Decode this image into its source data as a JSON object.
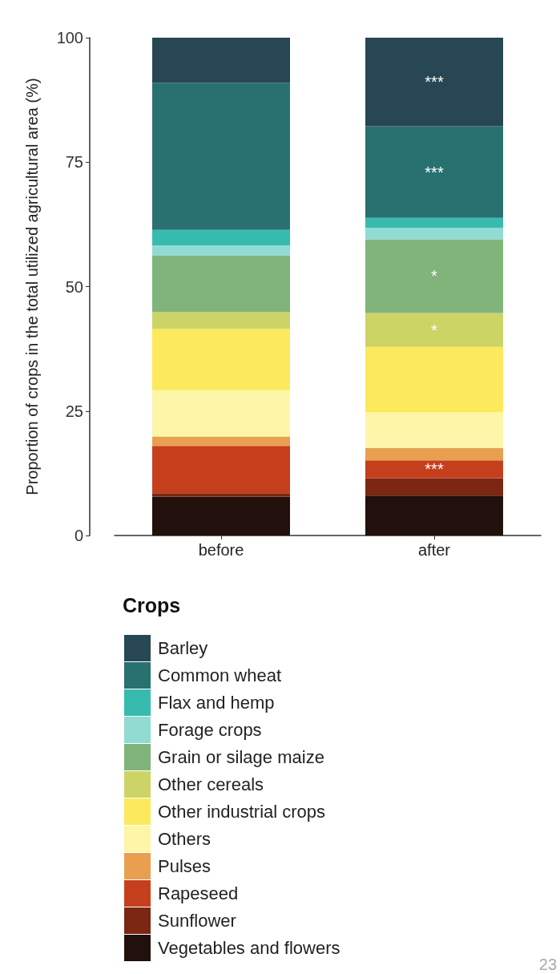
{
  "chart_data": {
    "type": "bar",
    "stacked": true,
    "ylabel": "Proportion of crops in the total utilized agricultural area (%)",
    "legend_title": "Crops",
    "legend": "bottom",
    "grid": false,
    "categories": [
      "before",
      "after"
    ],
    "ylim": [
      0,
      100
    ],
    "yticks": [
      0,
      25,
      50,
      75,
      100
    ],
    "series": [
      {
        "name": "Vegetables and flowers",
        "color": "#21100b",
        "values": [
          7.8,
          8.0
        ]
      },
      {
        "name": "Sunflower",
        "color": "#7b2713",
        "values": [
          0.7,
          3.5
        ]
      },
      {
        "name": "Rapeseed",
        "color": "#c63f1d",
        "values": [
          9.5,
          3.6
        ],
        "value_labels": [
          null,
          "***"
        ]
      },
      {
        "name": "Pulses",
        "color": "#e8a050",
        "values": [
          1.9,
          2.5
        ]
      },
      {
        "name": "Others",
        "color": "#fdf5a8",
        "values": [
          9.3,
          7.1
        ]
      },
      {
        "name": "Other industrial crops",
        "color": "#fcea5c",
        "values": [
          12.3,
          13.2
        ]
      },
      {
        "name": "Other cereals",
        "color": "#cdd466",
        "values": [
          3.4,
          6.8
        ],
        "value_labels": [
          null,
          "*"
        ]
      },
      {
        "name": "Grain or silage maize",
        "color": "#81b47a",
        "values": [
          11.3,
          14.8
        ],
        "value_labels": [
          null,
          "*"
        ]
      },
      {
        "name": "Forage crops",
        "color": "#91dbd3",
        "values": [
          2.1,
          2.3
        ]
      },
      {
        "name": "Flax and hemp",
        "color": "#37bbaf",
        "values": [
          3.1,
          2.0
        ]
      },
      {
        "name": "Common wheat",
        "color": "#287170",
        "values": [
          29.5,
          18.4
        ],
        "value_labels": [
          null,
          "***"
        ]
      },
      {
        "name": "Barley",
        "color": "#264753",
        "values": [
          9.1,
          17.8
        ],
        "value_labels": [
          null,
          "***"
        ]
      }
    ],
    "annotations": [
      "23"
    ]
  }
}
